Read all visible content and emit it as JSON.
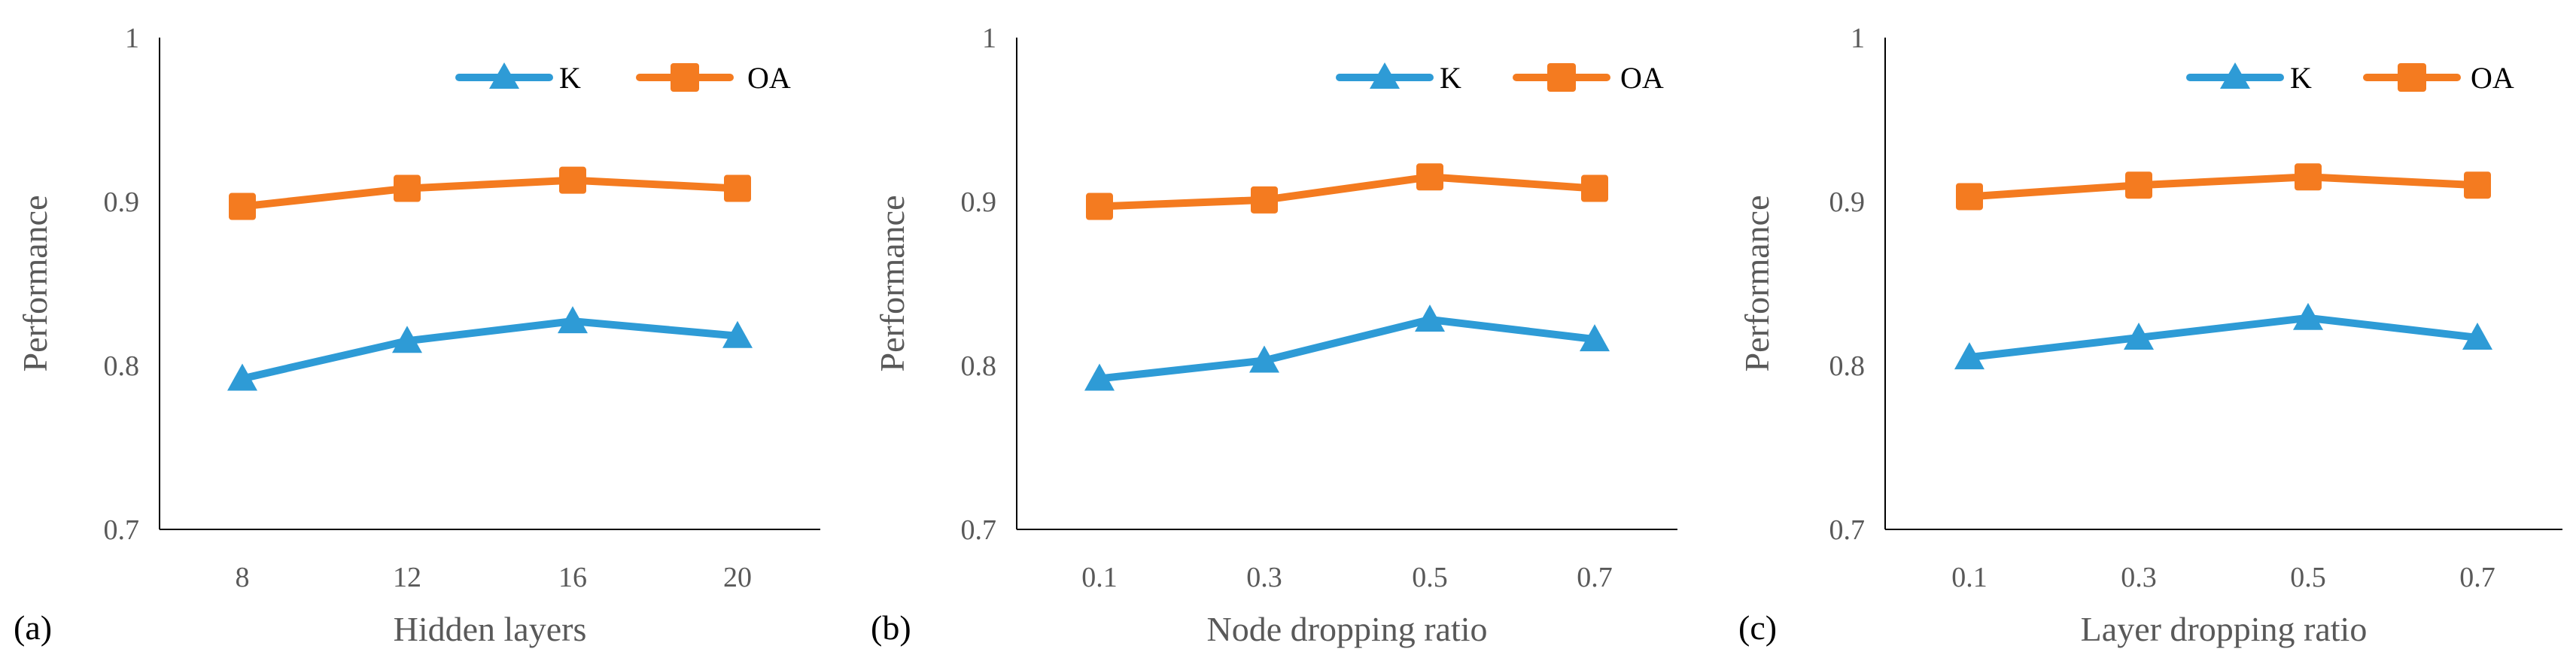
{
  "colors": {
    "K": "#2E9BD6",
    "OA": "#F47B20"
  },
  "chart_data": [
    {
      "type": "line",
      "panel_label": "(a)",
      "xlabel": "Hidden layers",
      "ylabel": "Performance",
      "categories": [
        "8",
        "12",
        "16",
        "20"
      ],
      "ylim": [
        0.7,
        1
      ],
      "yticks": [
        "0.7",
        "0.8",
        "0.9",
        "1"
      ],
      "grid": false,
      "legend": "top-right",
      "series": [
        {
          "name": "K",
          "marker": "triangle",
          "values": [
            0.792,
            0.815,
            0.827,
            0.818
          ]
        },
        {
          "name": "OA",
          "marker": "square",
          "values": [
            0.897,
            0.908,
            0.913,
            0.908
          ]
        }
      ]
    },
    {
      "type": "line",
      "panel_label": "(b)",
      "xlabel": "Node dropping ratio",
      "ylabel": "Performance",
      "categories": [
        "0.1",
        "0.3",
        "0.5",
        "0.7"
      ],
      "ylim": [
        0.7,
        1
      ],
      "yticks": [
        "0.7",
        "0.8",
        "0.9",
        "1"
      ],
      "grid": false,
      "legend": "top-right",
      "series": [
        {
          "name": "K",
          "marker": "triangle",
          "values": [
            0.792,
            0.803,
            0.828,
            0.816
          ]
        },
        {
          "name": "OA",
          "marker": "square",
          "values": [
            0.897,
            0.901,
            0.915,
            0.908
          ]
        }
      ]
    },
    {
      "type": "line",
      "panel_label": "(c)",
      "xlabel": "Layer dropping ratio",
      "ylabel": "Performance",
      "categories": [
        "0.1",
        "0.3",
        "0.5",
        "0.7"
      ],
      "ylim": [
        0.7,
        1
      ],
      "yticks": [
        "0.7",
        "0.8",
        "0.9",
        "1"
      ],
      "grid": false,
      "legend": "top-right",
      "series": [
        {
          "name": "K",
          "marker": "triangle",
          "values": [
            0.805,
            0.817,
            0.829,
            0.817
          ]
        },
        {
          "name": "OA",
          "marker": "square",
          "values": [
            0.903,
            0.91,
            0.915,
            0.91
          ]
        }
      ]
    }
  ]
}
